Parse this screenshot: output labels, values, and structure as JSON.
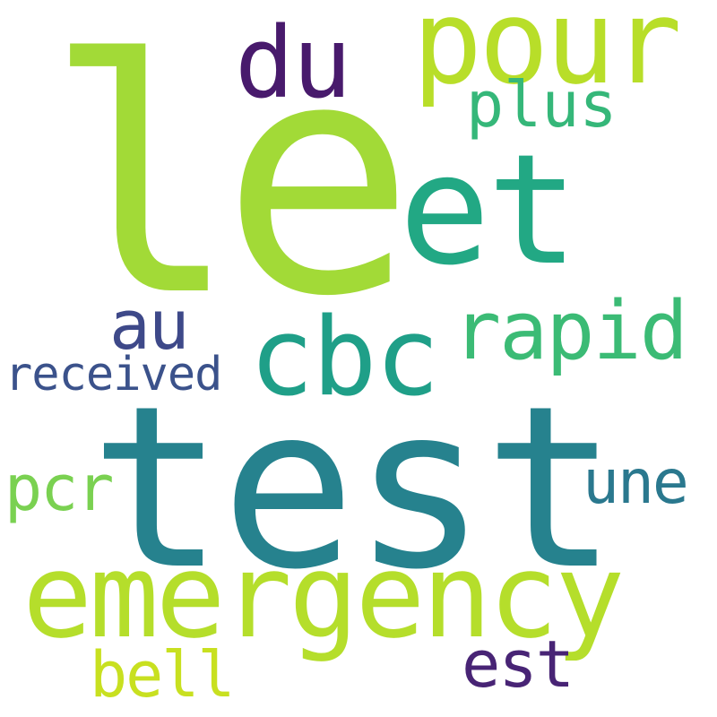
{
  "word_cloud": {
    "background": "#ffffff",
    "words": {
      "le": {
        "text": "le",
        "color": "#a2da37"
      },
      "test": {
        "text": "test",
        "color": "#26828e"
      },
      "emergency": {
        "text": "emergency",
        "color": "#b5de2b"
      },
      "et": {
        "text": "et",
        "color": "#22a884"
      },
      "cbc": {
        "text": "cbc",
        "color": "#1f9f88"
      },
      "pour": {
        "text": "pour",
        "color": "#b8de29"
      },
      "du": {
        "text": "du",
        "color": "#481a6c"
      },
      "rapid": {
        "text": "rapid",
        "color": "#3bbb75"
      },
      "plus": {
        "text": "plus",
        "color": "#35b779"
      },
      "au": {
        "text": "au",
        "color": "#3e4989"
      },
      "received": {
        "text": "received",
        "color": "#3b528b"
      },
      "pcr": {
        "text": "pcr",
        "color": "#7ad151"
      },
      "une": {
        "text": "une",
        "color": "#2a788e"
      },
      "est": {
        "text": "est",
        "color": "#482475"
      },
      "bell": {
        "text": "bell",
        "color": "#c8e020"
      }
    }
  }
}
